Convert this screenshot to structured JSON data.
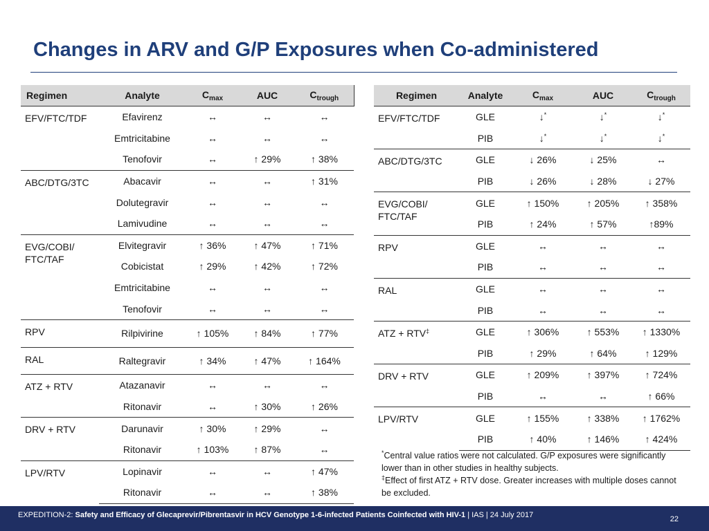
{
  "title": "Changes in ARV and G/P Exposures when Co-administered",
  "left_table": {
    "headers": {
      "regimen": "Regimen",
      "analyte": "Analyte",
      "cmax": "C",
      "cmax_sub": "max",
      "auc": "AUC",
      "ctrough": "C",
      "ctrough_sub": "trough"
    },
    "groups": [
      {
        "regimen": "EFV/FTC/TDF",
        "rows": [
          {
            "analyte": "Efavirenz",
            "cmax": "↔",
            "auc": "↔",
            "ctrough": "↔"
          },
          {
            "analyte": "Emtricitabine",
            "cmax": "↔",
            "auc": "↔",
            "ctrough": "↔"
          },
          {
            "analyte": "Tenofovir",
            "cmax": "↔",
            "auc": "↑ 29%",
            "ctrough": "↑ 38%"
          }
        ]
      },
      {
        "regimen": "ABC/DTG/3TC",
        "rows": [
          {
            "analyte": "Abacavir",
            "cmax": "↔",
            "auc": "↔",
            "ctrough": "↑ 31%"
          },
          {
            "analyte": "Dolutegravir",
            "cmax": "↔",
            "auc": "↔",
            "ctrough": "↔"
          },
          {
            "analyte": "Lamivudine",
            "cmax": "↔",
            "auc": "↔",
            "ctrough": "↔"
          }
        ]
      },
      {
        "regimen": "EVG/COBI/ FTC/TAF",
        "rows": [
          {
            "analyte": "Elvitegravir",
            "cmax": "↑ 36%",
            "auc": "↑ 47%",
            "ctrough": "↑ 71%"
          },
          {
            "analyte": "Cobicistat",
            "cmax": "↑ 29%",
            "auc": "↑ 42%",
            "ctrough": "↑ 72%"
          },
          {
            "analyte": "Emtricitabine",
            "cmax": "↔",
            "auc": "↔",
            "ctrough": "↔"
          },
          {
            "analyte": "Tenofovir",
            "cmax": "↔",
            "auc": "↔",
            "ctrough": "↔"
          }
        ]
      },
      {
        "regimen": "RPV",
        "rows": [
          {
            "analyte": "Rilpivirine",
            "cmax": "↑ 105%",
            "auc": "↑ 84%",
            "ctrough": "↑ 77%"
          }
        ]
      },
      {
        "regimen": "RAL",
        "rows": [
          {
            "analyte": "Raltegravir",
            "cmax": "↑ 34%",
            "auc": "↑ 47%",
            "ctrough": "↑ 164%"
          }
        ]
      },
      {
        "regimen": "ATZ + RTV",
        "rows": [
          {
            "analyte": "Atazanavir",
            "cmax": "↔",
            "auc": "↔",
            "ctrough": "↔"
          },
          {
            "analyte": "Ritonavir",
            "cmax": "↔",
            "auc": "↑ 30%",
            "ctrough": "↑ 26%"
          }
        ]
      },
      {
        "regimen": "DRV + RTV",
        "rows": [
          {
            "analyte": "Darunavir",
            "cmax": "↑ 30%",
            "auc": "↑ 29%",
            "ctrough": "↔"
          },
          {
            "analyte": "Ritonavir",
            "cmax": "↑ 103%",
            "auc": "↑ 87%",
            "ctrough": "↔"
          }
        ]
      },
      {
        "regimen": "LPV/RTV",
        "rows": [
          {
            "analyte": "Lopinavir",
            "cmax": "↔",
            "auc": "↔",
            "ctrough": "↑ 47%"
          },
          {
            "analyte": "Ritonavir",
            "cmax": "↔",
            "auc": "↔",
            "ctrough": "↑ 38%"
          }
        ]
      }
    ]
  },
  "right_table": {
    "headers": {
      "regimen": "Regimen",
      "analyte": "Analyte",
      "cmax": "C",
      "cmax_sub": "max",
      "auc": "AUC",
      "ctrough": "C",
      "ctrough_sub": "trough"
    },
    "groups": [
      {
        "regimen": "EFV/FTC/TDF",
        "rows": [
          {
            "analyte": "GLE",
            "cmax": "↓",
            "cmax_mark": "*",
            "auc": "↓",
            "auc_mark": "*",
            "ctrough": "↓",
            "ctrough_mark": "*"
          },
          {
            "analyte": "PIB",
            "cmax": "↓",
            "cmax_mark": "*",
            "auc": "↓",
            "auc_mark": "*",
            "ctrough": "↓",
            "ctrough_mark": "*"
          }
        ]
      },
      {
        "regimen": "ABC/DTG/3TC",
        "rows": [
          {
            "analyte": "GLE",
            "cmax": "↓ 26%",
            "auc": "↓ 25%",
            "ctrough": "↔"
          },
          {
            "analyte": "PIB",
            "cmax": "↓ 26%",
            "auc": "↓ 28%",
            "ctrough": "↓ 27%"
          }
        ]
      },
      {
        "regimen": "EVG/COBI/ FTC/TAF",
        "rows": [
          {
            "analyte": "GLE",
            "cmax": "↑ 150%",
            "auc": "↑ 205%",
            "ctrough": "↑ 358%"
          },
          {
            "analyte": "PIB",
            "cmax": "↑ 24%",
            "auc": "↑ 57%",
            "ctrough": "↑89%"
          }
        ]
      },
      {
        "regimen": "RPV",
        "rows": [
          {
            "analyte": "GLE",
            "cmax": "↔",
            "auc": "↔",
            "ctrough": "↔"
          },
          {
            "analyte": "PIB",
            "cmax": "↔",
            "auc": "↔",
            "ctrough": "↔"
          }
        ]
      },
      {
        "regimen": "RAL",
        "rows": [
          {
            "analyte": "GLE",
            "cmax": "↔",
            "auc": "↔",
            "ctrough": "↔"
          },
          {
            "analyte": "PIB",
            "cmax": "↔",
            "auc": "↔",
            "ctrough": "↔"
          }
        ]
      },
      {
        "regimen": "ATZ + RTV",
        "regimen_mark": "‡",
        "rows": [
          {
            "analyte": "GLE",
            "cmax": "↑ 306%",
            "auc": "↑ 553%",
            "ctrough": "↑ 1330%"
          },
          {
            "analyte": "PIB",
            "cmax": "↑ 29%",
            "auc": "↑ 64%",
            "ctrough": "↑ 129%"
          }
        ]
      },
      {
        "regimen": "DRV + RTV",
        "rows": [
          {
            "analyte": "GLE",
            "cmax": "↑ 209%",
            "auc": "↑ 397%",
            "ctrough": "↑ 724%"
          },
          {
            "analyte": "PIB",
            "cmax": "↔",
            "auc": "↔",
            "ctrough": "↑ 66%"
          }
        ]
      },
      {
        "regimen": "LPV/RTV",
        "rows": [
          {
            "analyte": "GLE",
            "cmax": "↑ 155%",
            "auc": "↑ 338%",
            "ctrough": "↑ 1762%"
          },
          {
            "analyte": "PIB",
            "cmax": "↑ 40%",
            "auc": "↑ 146%",
            "ctrough": "↑ 424%"
          }
        ]
      }
    ]
  },
  "footnotes": [
    {
      "mark": "*",
      "text": "Central value ratios were not calculated.  G/P exposures were significantly lower than in other studies in healthy subjects."
    },
    {
      "mark": "‡",
      "text": "Effect of first ATZ + RTV dose.  Greater increases with multiple doses cannot be excluded."
    }
  ],
  "footer": {
    "prefix": "EXPEDITION-2: ",
    "bold": "Safety and Efficacy of Glecaprevir/Pibrentasvir in HCV Genotype 1-6-infected Patients Coinfected with HIV-1",
    "suffix": " | IAS | 24 July 2017",
    "page": "22"
  }
}
